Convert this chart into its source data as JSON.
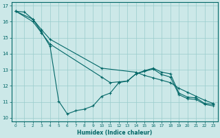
{
  "xlabel": "Humidex (Indice chaleur)",
  "bg_color": "#cce8e8",
  "line_color": "#006666",
  "grid_color": "#99cccc",
  "xlim": [
    -0.5,
    23.5
  ],
  "ylim": [
    9.8,
    17.2
  ],
  "yticks": [
    10,
    11,
    12,
    13,
    14,
    15,
    16,
    17
  ],
  "xticks": [
    0,
    1,
    2,
    3,
    4,
    5,
    6,
    7,
    8,
    9,
    10,
    11,
    12,
    13,
    14,
    15,
    16,
    17,
    18,
    19,
    20,
    21,
    22,
    23
  ],
  "lines": [
    {
      "x": [
        0,
        1,
        2,
        3,
        4,
        5,
        6,
        7,
        8,
        9,
        10,
        11,
        12,
        13,
        14,
        15,
        16,
        17,
        18,
        19,
        20,
        21,
        22,
        23
      ],
      "y": [
        16.65,
        16.6,
        16.15,
        15.35,
        14.45,
        11.05,
        10.25,
        10.45,
        10.55,
        10.75,
        11.35,
        11.55,
        12.2,
        12.3,
        12.75,
        12.95,
        13.1,
        12.85,
        12.75,
        11.55,
        11.3,
        11.25,
        10.9,
        10.85
      ]
    },
    {
      "x": [
        0,
        2,
        3,
        4,
        10,
        14,
        15,
        16,
        17,
        18,
        19,
        20,
        21,
        22,
        23
      ],
      "y": [
        16.65,
        16.15,
        15.5,
        14.9,
        13.1,
        12.85,
        12.65,
        12.5,
        12.35,
        12.2,
        11.85,
        11.6,
        11.35,
        11.1,
        10.9
      ]
    },
    {
      "x": [
        0,
        2,
        3,
        4,
        10,
        11,
        12,
        13,
        14,
        15,
        16,
        17,
        18,
        19,
        20,
        21,
        22,
        23
      ],
      "y": [
        16.65,
        16.0,
        15.3,
        14.6,
        12.55,
        12.2,
        12.25,
        12.3,
        12.75,
        12.9,
        13.05,
        12.7,
        12.55,
        11.45,
        11.2,
        11.15,
        10.85,
        10.75
      ]
    }
  ]
}
